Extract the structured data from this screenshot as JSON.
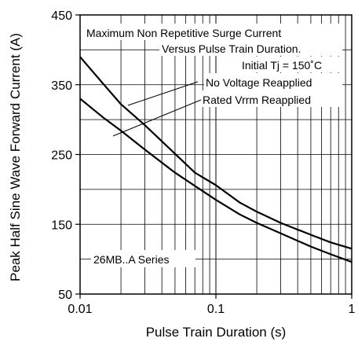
{
  "chart_data": {
    "type": "line",
    "title": "",
    "xlabel": "Pulse Train Duration (s)",
    "ylabel": "Peak Half Sine Wave Forward Current (A)",
    "x_scale": "log",
    "xlim": [
      0.01,
      1
    ],
    "ylim": [
      50,
      450
    ],
    "x_ticks": [
      0.01,
      0.1,
      1
    ],
    "x_tick_labels": [
      "0.01",
      "0.1",
      "1"
    ],
    "y_ticks": [
      50,
      150,
      250,
      350,
      450
    ],
    "y_tick_labels": [
      "50",
      "150",
      "250",
      "350",
      "450"
    ],
    "grid": true,
    "annotations": {
      "line1": "Maximum Non Repetitive Surge Current",
      "line2": "Versus Pulse Train Duration.",
      "line3": "Initial Tj = 150˚C",
      "series_note": "26MB..A Series"
    },
    "series": [
      {
        "name": "No Voltage Reapplied",
        "x": [
          0.01,
          0.015,
          0.02,
          0.03,
          0.05,
          0.07,
          0.1,
          0.15,
          0.2,
          0.3,
          0.5,
          0.7,
          1.0
        ],
        "y": [
          390,
          350,
          322,
          292,
          251,
          224,
          206,
          181,
          168,
          152,
          135,
          124,
          115
        ]
      },
      {
        "name": "Rated Vrrm Reapplied",
        "x": [
          0.01,
          0.015,
          0.02,
          0.03,
          0.05,
          0.07,
          0.1,
          0.15,
          0.2,
          0.3,
          0.5,
          0.7,
          1.0
        ],
        "y": [
          330,
          302,
          284,
          257,
          224,
          205,
          185,
          164,
          152,
          137,
          118,
          107,
          96
        ]
      }
    ]
  }
}
